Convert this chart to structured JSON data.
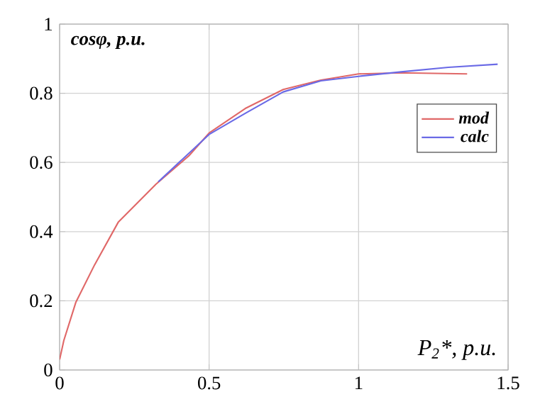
{
  "chart_data": {
    "type": "line",
    "xlabel": "P$_{2}$*, p.u.",
    "ylabel": "cosφ, p.u.",
    "xlim": [
      0,
      1.5
    ],
    "ylim": [
      0,
      1
    ],
    "xticks": [
      0,
      0.5,
      1,
      1.5
    ],
    "yticks": [
      0,
      0.2,
      0.4,
      0.6,
      0.8,
      1
    ],
    "grid": true,
    "legend": "right",
    "line_style": "solid",
    "marker": "none",
    "series": [
      {
        "name": "mod",
        "color": "#e06868",
        "x": [
          0,
          0.014,
          0.054,
          0.117,
          0.196,
          0.259,
          0.322,
          0.432,
          0.5,
          0.621,
          0.748,
          0.874,
          1.0,
          1.142,
          1.363
        ],
        "values": [
          0.03,
          0.085,
          0.195,
          0.304,
          0.427,
          0.482,
          0.537,
          0.619,
          0.685,
          0.756,
          0.811,
          0.838,
          0.856,
          0.859,
          0.856
        ]
      },
      {
        "name": "calc",
        "color": "#6a6ae6",
        "x": [
          0.33,
          0.5,
          0.621,
          0.748,
          0.874,
          1.0,
          1.142,
          1.3,
          1.465
        ],
        "values": [
          0.544,
          0.681,
          0.742,
          0.804,
          0.836,
          0.849,
          0.862,
          0.875,
          0.884
        ]
      }
    ]
  }
}
